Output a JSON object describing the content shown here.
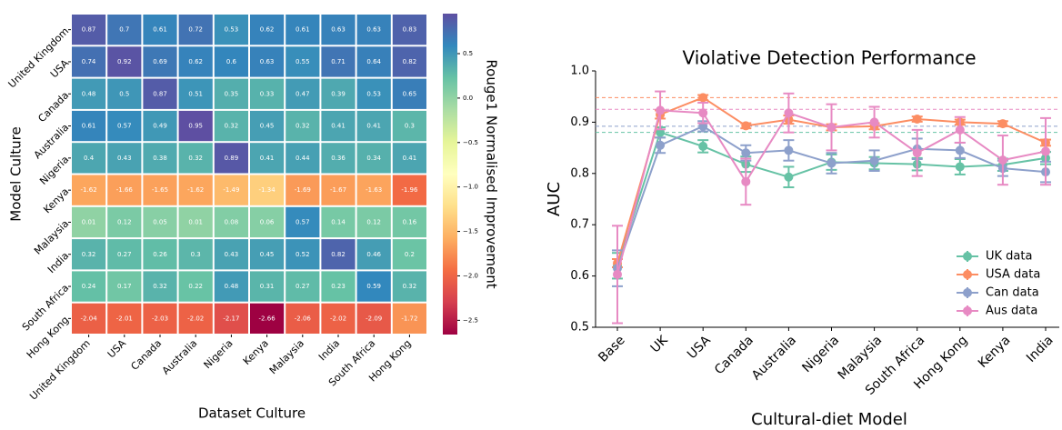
{
  "chart_data": [
    {
      "type": "heatmap",
      "xlabel": "Dataset Culture",
      "ylabel": "Model Culture",
      "colorbar_label": "Rouge1 Normalised Improvement",
      "colormap": "Spectral",
      "zlim": [
        -2.66,
        0.95
      ],
      "zticks": [
        0.5,
        {
          "value": 0.0,
          "label": "0.0"
        },
        {
          "value": -0.5,
          "label": "−0.5"
        },
        {
          "value": -1.0,
          "label": "−1.0"
        },
        {
          "value": -1.5,
          "label": "−1.5"
        },
        {
          "value": -2.0,
          "label": "−2.0"
        },
        {
          "value": -2.5,
          "label": "−2.5"
        }
      ],
      "x": [
        "United Kingdom",
        "USA",
        "Canada",
        "Australia",
        "Nigeria",
        "Kenya",
        "Malaysia",
        "India",
        "South Africa",
        "Hong Kong"
      ],
      "y": [
        "United Kingdom",
        "USA",
        "Canada",
        "Australia",
        "Nigeria",
        "Kenya",
        "Malaysia",
        "India",
        "South Africa",
        "Hong Kong"
      ],
      "values": [
        [
          0.87,
          0.7,
          0.61,
          0.72,
          0.53,
          0.62,
          0.61,
          0.63,
          0.63,
          0.83
        ],
        [
          0.74,
          0.92,
          0.69,
          0.62,
          0.6,
          0.63,
          0.55,
          0.71,
          0.64,
          0.82
        ],
        [
          0.48,
          0.5,
          0.87,
          0.51,
          0.35,
          0.33,
          0.47,
          0.39,
          0.53,
          0.65
        ],
        [
          0.61,
          0.57,
          0.49,
          0.95,
          0.32,
          0.45,
          0.32,
          0.41,
          0.41,
          0.3
        ],
        [
          0.4,
          0.43,
          0.38,
          0.32,
          0.89,
          0.41,
          0.44,
          0.36,
          0.34,
          0.41
        ],
        [
          -1.62,
          -1.66,
          -1.65,
          -1.62,
          -1.49,
          -1.34,
          -1.69,
          -1.67,
          -1.63,
          -1.96
        ],
        [
          0.01,
          0.12,
          0.05,
          0.01,
          0.08,
          0.06,
          0.57,
          0.14,
          0.12,
          0.16
        ],
        [
          0.32,
          0.27,
          0.26,
          0.3,
          0.43,
          0.45,
          0.52,
          0.82,
          0.46,
          0.2
        ],
        [
          0.24,
          0.17,
          0.32,
          0.22,
          0.48,
          0.31,
          0.27,
          0.23,
          0.59,
          0.32
        ],
        [
          -2.04,
          -2.01,
          -2.03,
          -2.02,
          -2.17,
          -2.66,
          -2.06,
          -2.02,
          -2.09,
          -1.72
        ]
      ]
    },
    {
      "type": "line",
      "title": "Violative Detection Performance",
      "xlabel": "Cultural-diet Model",
      "ylabel": "AUC",
      "categories": [
        "Base",
        "UK",
        "USA",
        "Canada",
        "Australia",
        "Nigeria",
        "Malaysia",
        "South Africa",
        "Hong Kong",
        "Kenya",
        "India"
      ],
      "ylim": [
        0.5,
        1.0
      ],
      "yticks": [
        0.5,
        0.6,
        0.7,
        0.8,
        0.9,
        {
          "value": 1.0,
          "label": "1.0"
        }
      ],
      "legend": "lower right",
      "series": [
        {
          "name": "UK data",
          "color": "#66c2a5",
          "baseline": 0.88,
          "values": [
            0.62,
            0.88,
            0.853,
            0.818,
            0.793,
            0.822,
            0.82,
            0.818,
            0.813,
            0.817,
            0.83
          ],
          "errors": [
            0.025,
            0.01,
            0.012,
            0.015,
            0.02,
            0.015,
            0.012,
            0.012,
            0.015,
            0.012,
            0.012
          ]
        },
        {
          "name": "USA data",
          "color": "#fc8d62",
          "baseline": 0.948,
          "values": [
            0.625,
            0.915,
            0.948,
            0.893,
            0.905,
            0.89,
            0.892,
            0.906,
            0.9,
            0.897,
            0.86
          ],
          "errors": [
            0.008,
            0.008,
            0.005,
            0.005,
            0.008,
            0.006,
            0.006,
            0.005,
            0.005,
            0.005,
            0.006
          ]
        },
        {
          "name": "Can data",
          "color": "#8da0cb",
          "baseline": 0.892,
          "values": [
            0.615,
            0.855,
            0.892,
            0.84,
            0.845,
            0.82,
            0.825,
            0.848,
            0.845,
            0.81,
            0.803
          ],
          "errors": [
            0.035,
            0.015,
            0.01,
            0.015,
            0.02,
            0.02,
            0.02,
            0.02,
            0.015,
            0.015,
            0.02
          ]
        },
        {
          "name": "Aus data",
          "color": "#e78ac3",
          "baseline": 0.925,
          "values": [
            0.603,
            0.923,
            0.918,
            0.784,
            0.918,
            0.89,
            0.9,
            0.84,
            0.885,
            0.826,
            0.843
          ],
          "errors": [
            0.095,
            0.037,
            0.02,
            0.045,
            0.038,
            0.045,
            0.03,
            0.045,
            0.025,
            0.048,
            0.065
          ]
        }
      ]
    }
  ]
}
